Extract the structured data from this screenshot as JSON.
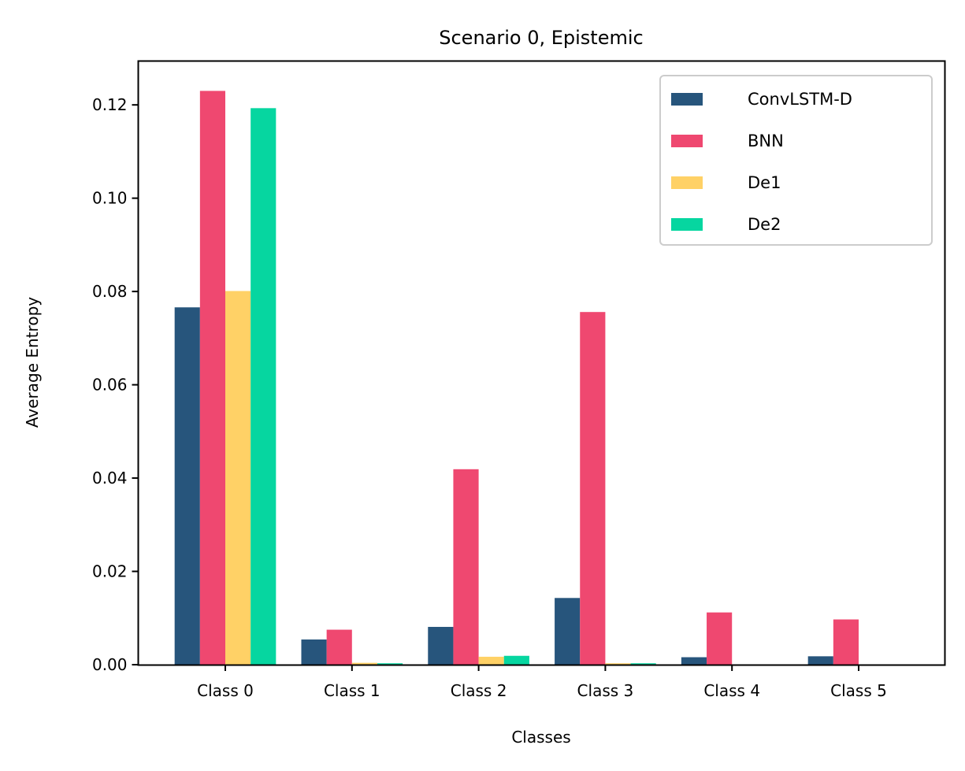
{
  "chart_data": {
    "type": "bar",
    "title": "Scenario 0, Epistemic",
    "xlabel": "Classes",
    "ylabel": "Average Entropy",
    "categories": [
      "Class 0",
      "Class 1",
      "Class 2",
      "Class 3",
      "Class 4",
      "Class 5"
    ],
    "series": [
      {
        "name": "ConvLSTM-D",
        "color": "#27557c",
        "values": [
          0.0766,
          0.0054,
          0.0081,
          0.0143,
          0.0016,
          0.0018
        ]
      },
      {
        "name": "BNN",
        "color": "#ef4870",
        "values": [
          0.123,
          0.0075,
          0.0419,
          0.0756,
          0.0112,
          0.0097
        ]
      },
      {
        "name": "De1",
        "color": "#ffd166",
        "values": [
          0.0801,
          0.0004,
          0.0017,
          0.0003,
          0.0,
          0.0
        ]
      },
      {
        "name": "De2",
        "color": "#06d6a0",
        "values": [
          0.1193,
          0.0003,
          0.0019,
          0.0003,
          0.0,
          0.0
        ]
      }
    ],
    "ylim": [
      0,
      0.1294
    ],
    "yticks": [
      "0.00",
      "0.02",
      "0.04",
      "0.06",
      "0.08",
      "0.10",
      "0.12"
    ],
    "grid": false,
    "legend": "top-right"
  }
}
